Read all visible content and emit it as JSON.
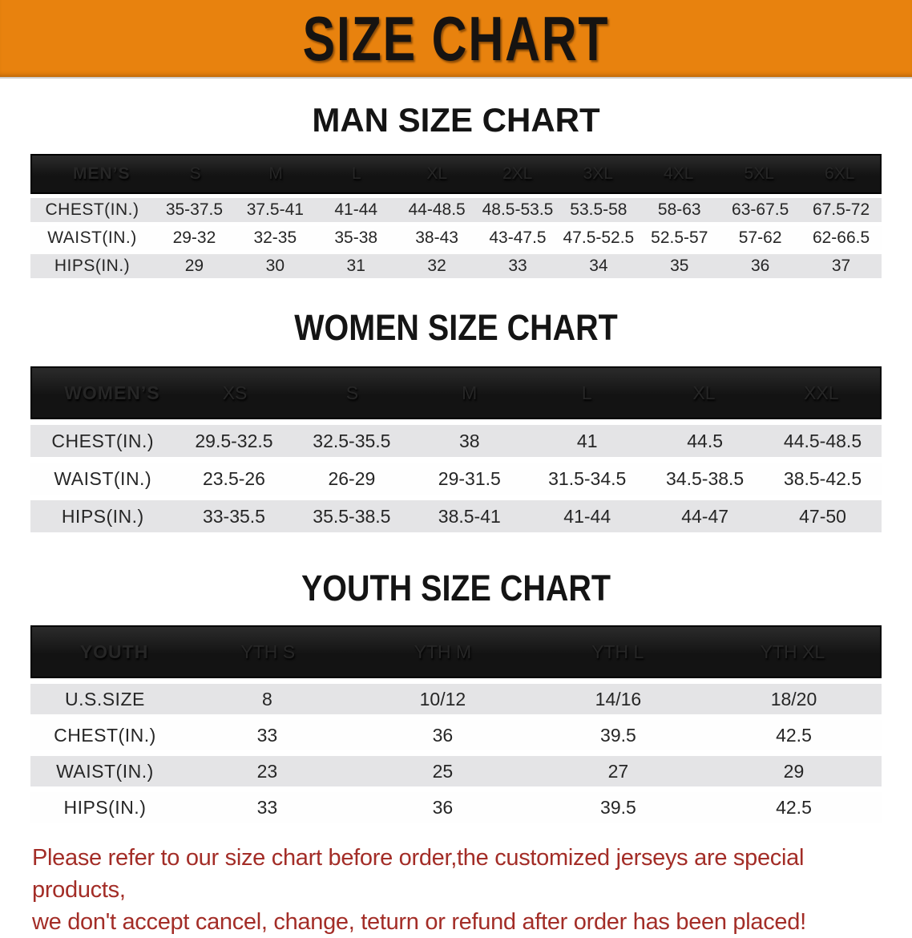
{
  "banner": {
    "title": "SIZE CHART"
  },
  "sections": {
    "men": {
      "title": "MAN SIZE CHART",
      "header_label": "MEN’S",
      "columns": [
        "S",
        "M",
        "L",
        "XL",
        "2XL",
        "3XL",
        "4XL",
        "5XL",
        "6XL"
      ],
      "rows": [
        {
          "label": "CHEST(IN.)",
          "values": [
            "35-37.5",
            "37.5-41",
            "41-44",
            "44-48.5",
            "48.5-53.5",
            "53.5-58",
            "58-63",
            "63-67.5",
            "67.5-72"
          ]
        },
        {
          "label": "WAIST(IN.)",
          "values": [
            "29-32",
            "32-35",
            "35-38",
            "38-43",
            "43-47.5",
            "47.5-52.5",
            "52.5-57",
            "57-62",
            "62-66.5"
          ]
        },
        {
          "label": "HIPS(IN.)",
          "values": [
            "29",
            "30",
            "31",
            "32",
            "33",
            "34",
            "35",
            "36",
            "37"
          ]
        }
      ]
    },
    "women": {
      "title": "WOMEN SIZE CHART",
      "header_label": "WOMEN’S",
      "columns": [
        "XS",
        "S",
        "M",
        "L",
        "XL",
        "XXL"
      ],
      "rows": [
        {
          "label": "CHEST(IN.)",
          "values": [
            "29.5-32.5",
            "32.5-35.5",
            "38",
            "41",
            "44.5",
            "44.5-48.5"
          ]
        },
        {
          "label": "WAIST(IN.)",
          "values": [
            "23.5-26",
            "26-29",
            "29-31.5",
            "31.5-34.5",
            "34.5-38.5",
            "38.5-42.5"
          ]
        },
        {
          "label": "HIPS(IN.)",
          "values": [
            "33-35.5",
            "35.5-38.5",
            "38.5-41",
            "41-44",
            "44-47",
            "47-50"
          ]
        }
      ]
    },
    "youth": {
      "title": "YOUTH SIZE CHART",
      "header_label": "YOUTH",
      "columns": [
        "YTH S",
        "YTH M",
        "YTH L",
        "YTH XL"
      ],
      "rows": [
        {
          "label": "U.S.SIZE",
          "values": [
            "8",
            "10/12",
            "14/16",
            "18/20"
          ]
        },
        {
          "label": "CHEST(IN.)",
          "values": [
            "33",
            "36",
            "39.5",
            "42.5"
          ]
        },
        {
          "label": "WAIST(IN.)",
          "values": [
            "23",
            "25",
            "27",
            "29"
          ]
        },
        {
          "label": "HIPS(IN.)",
          "values": [
            "33",
            "36",
            "39.5",
            "42.5"
          ]
        }
      ]
    }
  },
  "disclaimer": {
    "line1": "Please refer to our size chart before order,the customized jerseys are special products,",
    "line2": "we don't accept cancel, change, teturn or refund after order has been placed!"
  },
  "colors": {
    "banner_bg": "#e8820e",
    "table_header_bg": "#131313",
    "row_stripe": "#e4e4e6",
    "disclaimer_text": "#a32d27"
  }
}
